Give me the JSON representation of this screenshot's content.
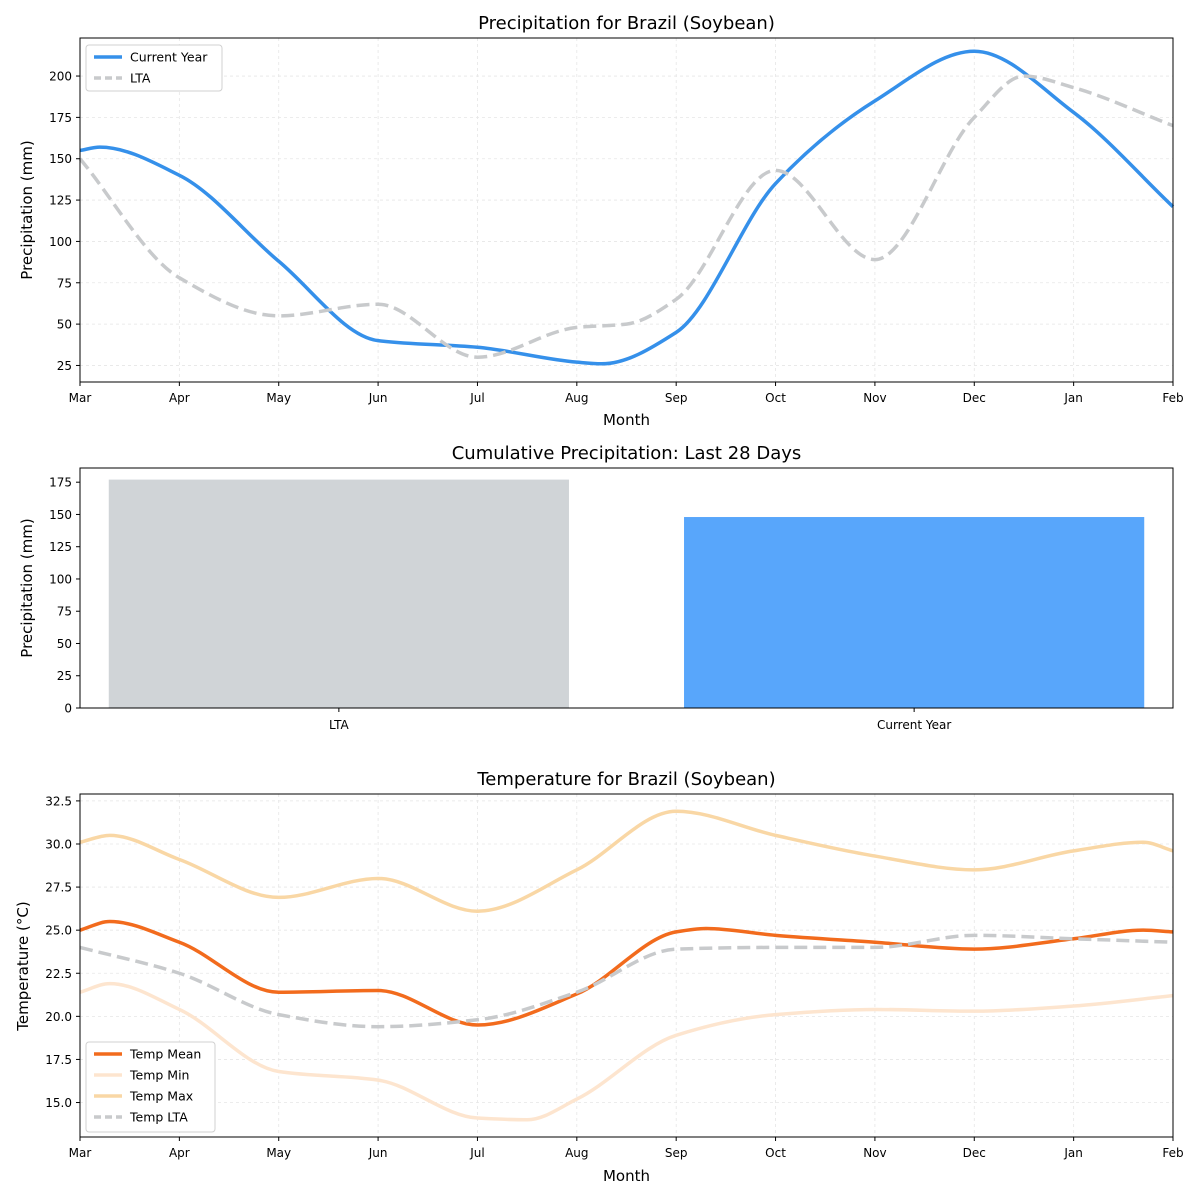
{
  "colors": {
    "current": "#3590ea",
    "lta": "#c8cacc",
    "bar_lta": "#d0d4d7",
    "bar_current": "#58a6fb",
    "temp_mean": "#f26b1d",
    "temp_min": "#fde5cf",
    "temp_max": "#f9d7a5",
    "temp_lta": "#c8cacc"
  },
  "chart_data": [
    {
      "type": "line",
      "title": "Precipitation for Brazil (Soybean)",
      "xlabel": "Month",
      "ylabel": "Precipitation (mm)",
      "categories": [
        "Mar",
        "Apr",
        "May",
        "Jun",
        "Jul",
        "Aug",
        "Sep",
        "Oct",
        "Nov",
        "Dec",
        "Jan",
        "Feb"
      ],
      "ylim": [
        15,
        223
      ],
      "yticks": [
        25,
        50,
        75,
        100,
        125,
        150,
        175,
        200
      ],
      "grid": true,
      "legend": "top-left",
      "series": [
        {
          "name": "Current Year",
          "style": "solid",
          "color_key": "current",
          "x": [
            0,
            0.2,
            1,
            2,
            3,
            4,
            5,
            5.25,
            6,
            7,
            8,
            9,
            10,
            11
          ],
          "y": [
            155,
            157,
            140,
            88,
            40,
            36,
            27,
            26,
            45,
            135,
            185,
            215,
            178,
            121
          ]
        },
        {
          "name": "LTA",
          "style": "dashed",
          "color_key": "lta",
          "x": [
            0,
            1,
            2,
            3,
            4,
            5,
            5.5,
            6,
            7,
            8,
            9,
            9.5,
            10,
            11
          ],
          "y": [
            150,
            78,
            55,
            62,
            30,
            48,
            50,
            65,
            143,
            89,
            175,
            200,
            193,
            170
          ]
        }
      ]
    },
    {
      "type": "bar",
      "title": "Cumulative Precipitation: Last 28 Days",
      "xlabel": "",
      "ylabel": "Precipitation (mm)",
      "categories": [
        "LTA",
        "Current Year"
      ],
      "values": [
        177,
        148
      ],
      "color_keys": [
        "bar_lta",
        "bar_current"
      ],
      "ylim": [
        0,
        186
      ],
      "yticks": [
        0,
        25,
        50,
        75,
        100,
        125,
        150,
        175
      ],
      "grid": false
    },
    {
      "type": "line",
      "title": "Temperature for Brazil (Soybean)",
      "xlabel": "Month",
      "ylabel": "Temperature (°C)",
      "categories": [
        "Mar",
        "Apr",
        "May",
        "Jun",
        "Jul",
        "Aug",
        "Sep",
        "Oct",
        "Nov",
        "Dec",
        "Jan",
        "Feb"
      ],
      "ylim": [
        13.0,
        32.9
      ],
      "yticks": [
        15.0,
        17.5,
        20.0,
        22.5,
        25.0,
        27.5,
        30.0,
        32.5
      ],
      "grid": true,
      "legend": "bottom-left",
      "series": [
        {
          "name": "Temp Mean",
          "style": "solid",
          "color_key": "temp_mean",
          "x": [
            0,
            0.3,
            1,
            2,
            3,
            4,
            5,
            6,
            6.3,
            7,
            8,
            9,
            10,
            10.7,
            11
          ],
          "y": [
            25.0,
            25.5,
            24.3,
            21.4,
            21.5,
            19.5,
            21.3,
            24.9,
            25.1,
            24.7,
            24.3,
            23.9,
            24.5,
            25.0,
            24.9
          ]
        },
        {
          "name": "Temp Min",
          "style": "solid",
          "color_key": "temp_min",
          "x": [
            0,
            0.3,
            1,
            2,
            3,
            4,
            4.5,
            5,
            6,
            7,
            8,
            9,
            10,
            11
          ],
          "y": [
            21.4,
            21.9,
            20.4,
            16.8,
            16.3,
            14.1,
            14.0,
            15.2,
            18.9,
            20.1,
            20.4,
            20.3,
            20.6,
            21.2
          ]
        },
        {
          "name": "Temp Max",
          "style": "solid",
          "color_key": "temp_max",
          "x": [
            0,
            0.3,
            1,
            2,
            3,
            4,
            5,
            6,
            7,
            8,
            9,
            10,
            10.7,
            11
          ],
          "y": [
            30.1,
            30.5,
            29.1,
            26.9,
            28.0,
            26.1,
            28.5,
            31.9,
            30.5,
            29.3,
            28.5,
            29.6,
            30.1,
            29.6
          ]
        },
        {
          "name": "Temp LTA",
          "style": "dashed",
          "color_key": "temp_lta",
          "x": [
            0,
            1,
            2,
            3,
            4,
            5,
            6,
            7,
            8,
            9,
            10,
            11
          ],
          "y": [
            24.0,
            22.5,
            20.1,
            19.4,
            19.8,
            21.4,
            23.9,
            24.0,
            24.0,
            24.7,
            24.5,
            24.3
          ]
        }
      ]
    }
  ]
}
